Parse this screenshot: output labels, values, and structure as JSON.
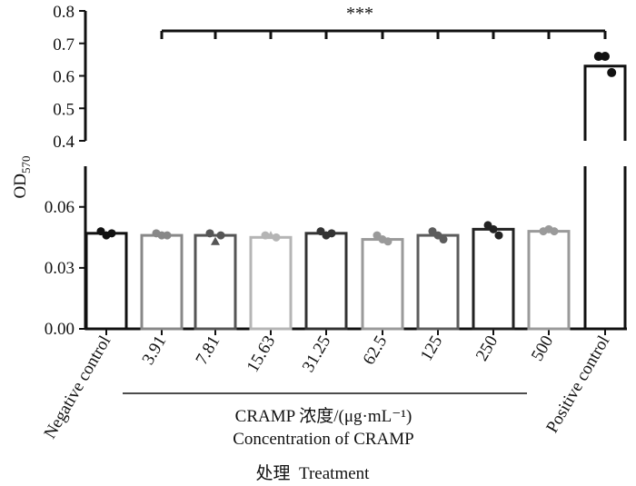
{
  "chart_data": {
    "type": "bar",
    "ylabel": "OD",
    "ylabel_sub": "570",
    "y_axis_break": true,
    "ylim_lower": [
      0,
      0.08
    ],
    "ylim_upper": [
      0.4,
      0.8
    ],
    "yticks_lower": [
      "0.00",
      "0.03",
      "0.06"
    ],
    "yticks_upper": [
      "0.4",
      "0.5",
      "0.6",
      "0.7",
      "0.8"
    ],
    "categories": [
      "Negative control",
      "3.91",
      "7.81",
      "15.63",
      "31.25",
      "62.5",
      "125",
      "250",
      "500",
      "Positive control"
    ],
    "values": [
      0.047,
      0.046,
      0.046,
      0.045,
      0.047,
      0.044,
      0.046,
      0.049,
      0.048,
      0.63
    ],
    "points": [
      [
        0.048,
        0.046,
        0.047
      ],
      [
        0.047,
        0.046,
        0.046
      ],
      [
        0.047,
        0.043,
        0.046
      ],
      [
        0.046,
        0.046,
        0.045
      ],
      [
        0.048,
        0.046,
        0.047
      ],
      [
        0.046,
        0.044,
        0.043
      ],
      [
        0.048,
        0.046,
        0.044
      ],
      [
        0.051,
        0.049,
        0.046
      ],
      [
        0.048,
        0.049,
        0.048
      ],
      [
        0.66,
        0.66,
        0.61
      ]
    ],
    "marker_shapes": [
      "circle",
      "circle",
      "triangle",
      "triangle",
      "circle",
      "circle",
      "circle",
      "circle",
      "circle",
      "circle"
    ],
    "bar_colors": [
      "#111111",
      "#888888",
      "#555555",
      "#b5b5b5",
      "#333333",
      "#9a9a9a",
      "#5c5c5c",
      "#222222",
      "#9a9a9a",
      "#111111"
    ],
    "significance": "***",
    "group_label_cn": "CRAMP 浓度/(μg·mL⁻¹)",
    "group_label_en": "Concentration of CRAMP",
    "xlabel": "处理  Treatment"
  }
}
